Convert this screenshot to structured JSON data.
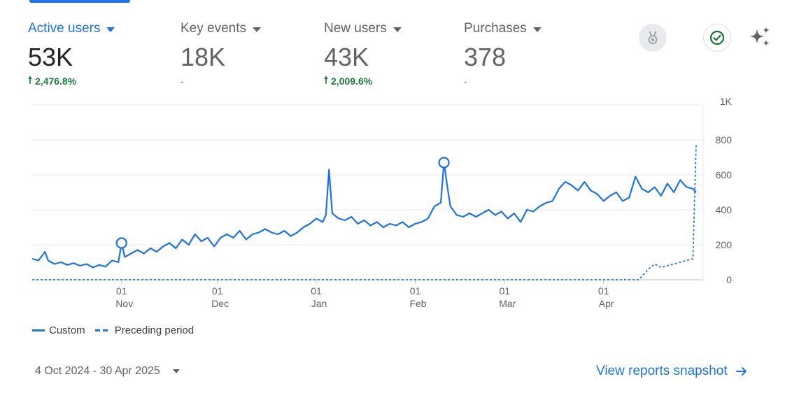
{
  "metrics": [
    {
      "label": "Active users",
      "value": "53K",
      "change": "2,476.8%",
      "trend": "up",
      "active": true
    },
    {
      "label": "Key events",
      "value": "18K",
      "change": "-",
      "trend": "none",
      "active": false
    },
    {
      "label": "New users",
      "value": "43K",
      "change": "2,009.6%",
      "trend": "up",
      "active": false
    },
    {
      "label": "Purchases",
      "value": "378",
      "change": "-",
      "trend": "none",
      "active": false
    }
  ],
  "toolbar": {
    "badge_icon": "medal-badge-icon",
    "check_icon": "check-circle-icon",
    "sparkle_icon": "sparkle-icon"
  },
  "legend": {
    "custom": "Custom",
    "preceding": "Preceding period"
  },
  "date_range": "4 Oct 2024 - 30 Apr 2025",
  "snapshot_link": "View reports snapshot",
  "colors": {
    "accent": "#1a73e8",
    "positive": "#188038",
    "muted": "#5f6368"
  },
  "chart_data": {
    "type": "line",
    "x_range": [
      "2024-10-04",
      "2025-04-30"
    ],
    "ylim": [
      0,
      1000
    ],
    "y_ticks": [
      {
        "value": 0,
        "label": "0"
      },
      {
        "value": 200,
        "label": "200"
      },
      {
        "value": 400,
        "label": "400"
      },
      {
        "value": 600,
        "label": "600"
      },
      {
        "value": 800,
        "label": "800"
      },
      {
        "value": 1000,
        "label": "1K"
      }
    ],
    "x_ticks": [
      {
        "date": "2024-11-01",
        "day": "01",
        "month": "Nov"
      },
      {
        "date": "2024-12-01",
        "day": "01",
        "month": "Dec"
      },
      {
        "date": "2025-01-01",
        "day": "01",
        "month": "Jan"
      },
      {
        "date": "2025-02-01",
        "day": "01",
        "month": "Feb"
      },
      {
        "date": "2025-03-01",
        "day": "01",
        "month": "Mar"
      },
      {
        "date": "2025-04-01",
        "day": "01",
        "month": "Apr"
      }
    ],
    "grid": true,
    "legend_position": "bottom-left",
    "series": [
      {
        "name": "Custom",
        "style": "solid",
        "points": [
          [
            "2024-10-04",
            120
          ],
          [
            "2024-10-06",
            110
          ],
          [
            "2024-10-08",
            160
          ],
          [
            "2024-10-09",
            110
          ],
          [
            "2024-10-11",
            90
          ],
          [
            "2024-10-13",
            100
          ],
          [
            "2024-10-15",
            85
          ],
          [
            "2024-10-17",
            95
          ],
          [
            "2024-10-19",
            80
          ],
          [
            "2024-10-21",
            90
          ],
          [
            "2024-10-23",
            70
          ],
          [
            "2024-10-25",
            85
          ],
          [
            "2024-10-27",
            75
          ],
          [
            "2024-10-29",
            110
          ],
          [
            "2024-10-31",
            100
          ],
          [
            "2024-11-01",
            210
          ],
          [
            "2024-11-02",
            130
          ],
          [
            "2024-11-04",
            150
          ],
          [
            "2024-11-06",
            170
          ],
          [
            "2024-11-08",
            150
          ],
          [
            "2024-11-10",
            180
          ],
          [
            "2024-11-12",
            160
          ],
          [
            "2024-11-14",
            190
          ],
          [
            "2024-11-16",
            210
          ],
          [
            "2024-11-18",
            180
          ],
          [
            "2024-11-20",
            230
          ],
          [
            "2024-11-22",
            200
          ],
          [
            "2024-11-24",
            260
          ],
          [
            "2024-11-26",
            220
          ],
          [
            "2024-11-28",
            240
          ],
          [
            "2024-11-30",
            190
          ],
          [
            "2024-12-02",
            240
          ],
          [
            "2024-12-04",
            260
          ],
          [
            "2024-12-06",
            240
          ],
          [
            "2024-12-08",
            280
          ],
          [
            "2024-12-10",
            230
          ],
          [
            "2024-12-12",
            260
          ],
          [
            "2024-12-14",
            270
          ],
          [
            "2024-12-16",
            290
          ],
          [
            "2024-12-18",
            270
          ],
          [
            "2024-12-20",
            260
          ],
          [
            "2024-12-22",
            280
          ],
          [
            "2024-12-24",
            250
          ],
          [
            "2024-12-26",
            270
          ],
          [
            "2024-12-28",
            300
          ],
          [
            "2024-12-30",
            320
          ],
          [
            "2025-01-01",
            350
          ],
          [
            "2025-01-03",
            330
          ],
          [
            "2025-01-04",
            370
          ],
          [
            "2025-01-05",
            630
          ],
          [
            "2025-01-06",
            380
          ],
          [
            "2025-01-08",
            350
          ],
          [
            "2025-01-10",
            340
          ],
          [
            "2025-01-12",
            360
          ],
          [
            "2025-01-14",
            320
          ],
          [
            "2025-01-16",
            340
          ],
          [
            "2025-01-18",
            310
          ],
          [
            "2025-01-20",
            330
          ],
          [
            "2025-01-22",
            300
          ],
          [
            "2025-01-24",
            320
          ],
          [
            "2025-01-26",
            310
          ],
          [
            "2025-01-28",
            330
          ],
          [
            "2025-01-30",
            300
          ],
          [
            "2025-02-01",
            320
          ],
          [
            "2025-02-03",
            330
          ],
          [
            "2025-02-05",
            350
          ],
          [
            "2025-02-07",
            420
          ],
          [
            "2025-02-09",
            440
          ],
          [
            "2025-02-10",
            670
          ],
          [
            "2025-02-11",
            540
          ],
          [
            "2025-02-12",
            420
          ],
          [
            "2025-02-14",
            370
          ],
          [
            "2025-02-16",
            360
          ],
          [
            "2025-02-18",
            380
          ],
          [
            "2025-02-20",
            360
          ],
          [
            "2025-02-22",
            380
          ],
          [
            "2025-02-24",
            400
          ],
          [
            "2025-02-26",
            370
          ],
          [
            "2025-02-28",
            390
          ],
          [
            "2025-03-02",
            350
          ],
          [
            "2025-03-04",
            380
          ],
          [
            "2025-03-06",
            330
          ],
          [
            "2025-03-08",
            400
          ],
          [
            "2025-03-10",
            390
          ],
          [
            "2025-03-12",
            420
          ],
          [
            "2025-03-14",
            440
          ],
          [
            "2025-03-16",
            450
          ],
          [
            "2025-03-18",
            520
          ],
          [
            "2025-03-20",
            560
          ],
          [
            "2025-03-22",
            540
          ],
          [
            "2025-03-24",
            510
          ],
          [
            "2025-03-26",
            560
          ],
          [
            "2025-03-28",
            510
          ],
          [
            "2025-03-30",
            490
          ],
          [
            "2025-04-01",
            450
          ],
          [
            "2025-04-03",
            480
          ],
          [
            "2025-04-05",
            500
          ],
          [
            "2025-04-07",
            450
          ],
          [
            "2025-04-09",
            470
          ],
          [
            "2025-04-11",
            590
          ],
          [
            "2025-04-13",
            520
          ],
          [
            "2025-04-15",
            500
          ],
          [
            "2025-04-17",
            530
          ],
          [
            "2025-04-19",
            480
          ],
          [
            "2025-04-21",
            550
          ],
          [
            "2025-04-23",
            500
          ],
          [
            "2025-04-25",
            570
          ],
          [
            "2025-04-27",
            530
          ],
          [
            "2025-04-29",
            520
          ],
          [
            "2025-04-30",
            500
          ]
        ],
        "highlighted_points": [
          {
            "date": "2024-11-01",
            "value": 210
          },
          {
            "date": "2025-02-10",
            "value": 670
          }
        ]
      },
      {
        "name": "Preceding period",
        "style": "dashed",
        "points": [
          [
            "2024-10-04",
            0
          ],
          [
            "2025-04-12",
            0
          ],
          [
            "2025-04-15",
            60
          ],
          [
            "2025-04-17",
            90
          ],
          [
            "2025-04-19",
            70
          ],
          [
            "2025-04-21",
            80
          ],
          [
            "2025-04-23",
            90
          ],
          [
            "2025-04-25",
            100
          ],
          [
            "2025-04-27",
            110
          ],
          [
            "2025-04-29",
            120
          ],
          [
            "2025-04-30",
            780
          ]
        ]
      }
    ]
  }
}
